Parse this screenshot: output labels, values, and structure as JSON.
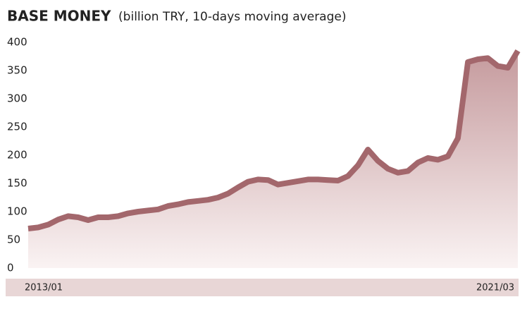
{
  "chart_data": {
    "type": "area",
    "title": "BASE MONEY",
    "subtitle": "(billion TRY, 10-days moving average)",
    "categories": [
      "2013/01",
      null,
      null,
      null,
      null,
      null,
      null,
      null,
      null,
      null,
      null,
      null,
      null,
      null,
      null,
      null,
      null,
      null,
      null,
      null,
      null,
      null,
      null,
      null,
      null,
      null,
      null,
      null,
      null,
      null,
      null,
      null,
      null,
      null,
      null,
      null,
      null,
      null,
      null,
      null,
      null,
      null,
      null,
      null,
      null,
      null,
      null,
      null,
      null,
      "2021/03"
    ],
    "series": [
      {
        "name": "Base money",
        "color": "#a3676c",
        "values": [
          70,
          72,
          77,
          86,
          92,
          90,
          85,
          90,
          90,
          92,
          97,
          100,
          102,
          104,
          110,
          113,
          117,
          119,
          121,
          125,
          132,
          143,
          153,
          157,
          156,
          148,
          151,
          154,
          157,
          157,
          156,
          155,
          163,
          182,
          210,
          190,
          176,
          169,
          172,
          187,
          195,
          192,
          198,
          230,
          365,
          370,
          372,
          358,
          355,
          385
        ]
      }
    ],
    "ylim": [
      0,
      400
    ],
    "yticks": [
      0,
      50,
      100,
      150,
      200,
      250,
      300,
      350,
      400
    ],
    "grid": false
  }
}
